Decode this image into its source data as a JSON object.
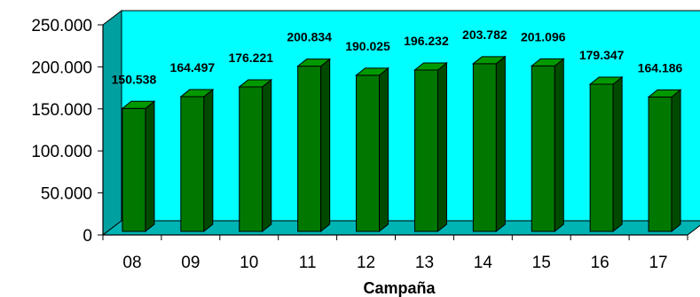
{
  "chart_data": {
    "type": "bar",
    "title": "",
    "xlabel": "Campaña",
    "ylabel": "",
    "categories": [
      "08",
      "09",
      "10",
      "11",
      "12",
      "13",
      "14",
      "15",
      "16",
      "17"
    ],
    "values": [
      150538,
      164497,
      176221,
      200834,
      190025,
      196232,
      203782,
      201096,
      179347,
      164186
    ],
    "value_labels": [
      "150.538",
      "164.497",
      "176.221",
      "200.834",
      "190.025",
      "196.232",
      "203.782",
      "201.096",
      "179.347",
      "164.186"
    ],
    "ylim": [
      0,
      250000
    ],
    "yticks": [
      0,
      50000,
      100000,
      150000,
      200000,
      250000
    ],
    "ytick_labels": [
      "0",
      "50.000",
      "100.000",
      "150.000",
      "200.000",
      "250.000"
    ],
    "grid": false,
    "legend": "none",
    "style": "3d",
    "colors": {
      "bar_front": "#007800",
      "bar_side": "#004a00",
      "bar_top": "#009a00",
      "back_wall": "#00ffff",
      "side_wall": "#00a0a0",
      "floor": "#00b4b4"
    }
  }
}
